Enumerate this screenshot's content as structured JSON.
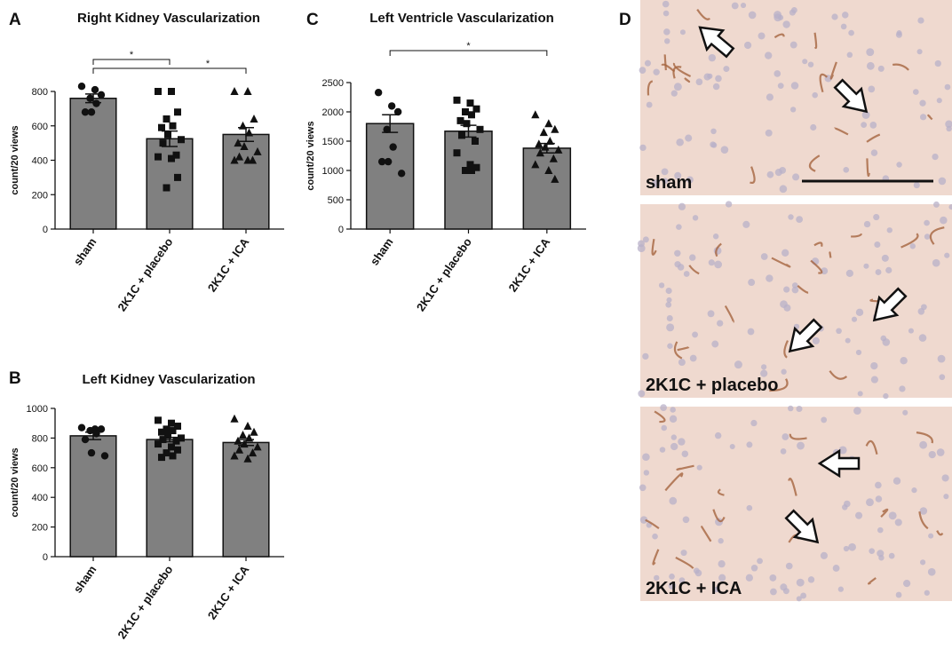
{
  "chart_data": [
    {
      "type": "bar",
      "panel": "A",
      "title": "Right Kidney Vascularization",
      "ylabel": "count/20 views",
      "categories": [
        "sham",
        "2K1C + placebo",
        "2K1C + ICA"
      ],
      "values": [
        760,
        525,
        550
      ],
      "errors": [
        25,
        45,
        40
      ],
      "points": [
        [
          830,
          810,
          780,
          760,
          730,
          680,
          680
        ],
        [
          800,
          800,
          680,
          640,
          600,
          590,
          550,
          520,
          500,
          430,
          420,
          410,
          300,
          240
        ],
        [
          800,
          800,
          640,
          600,
          560,
          500,
          480,
          450,
          420,
          400,
          400,
          400
        ]
      ],
      "markers": [
        "circle",
        "square",
        "triangle"
      ],
      "color": "#808080",
      "ylim": [
        0,
        800
      ],
      "yticks": [
        0,
        200,
        400,
        600,
        800
      ],
      "significance": [
        {
          "between": [
            "sham",
            "2K1C + placebo"
          ],
          "label": "*"
        },
        {
          "between": [
            "sham",
            "2K1C + ICA"
          ],
          "label": "*"
        }
      ]
    },
    {
      "type": "bar",
      "panel": "B",
      "title": "Left Kidney Vascularization",
      "ylabel": "count/20 views",
      "categories": [
        "sham",
        "2K1C + placebo",
        "2K1C + ICA"
      ],
      "values": [
        815,
        790,
        770
      ],
      "errors": [
        25,
        15,
        20
      ],
      "points": [
        [
          870,
          860,
          860,
          850,
          830,
          790,
          700,
          680
        ],
        [
          920,
          900,
          880,
          860,
          850,
          840,
          820,
          800,
          790,
          780,
          760,
          740,
          720,
          700,
          680,
          670
        ],
        [
          930,
          880,
          840,
          820,
          800,
          780,
          760,
          740,
          720,
          700,
          680,
          660
        ]
      ],
      "markers": [
        "circle",
        "square",
        "triangle"
      ],
      "color": "#808080",
      "ylim": [
        0,
        1000
      ],
      "yticks": [
        0,
        200,
        400,
        600,
        800,
        1000
      ],
      "significance": []
    },
    {
      "type": "bar",
      "panel": "C",
      "title": "Left Ventricle Vascularization",
      "ylabel": "count/20 views",
      "categories": [
        "sham",
        "2K1C + placebo",
        "2K1C + ICA"
      ],
      "values": [
        1800,
        1670,
        1380
      ],
      "errors": [
        150,
        100,
        80
      ],
      "points": [
        [
          2330,
          2100,
          2000,
          1700,
          1400,
          1150,
          1150,
          950
        ],
        [
          2200,
          2150,
          2050,
          2000,
          1950,
          1850,
          1800,
          1700,
          1600,
          1500,
          1300,
          1100,
          1050,
          1000,
          1000
        ],
        [
          1950,
          1800,
          1700,
          1650,
          1500,
          1450,
          1400,
          1350,
          1300,
          1200,
          1100,
          1000,
          850
        ]
      ],
      "markers": [
        "circle",
        "square",
        "triangle"
      ],
      "color": "#808080",
      "ylim": [
        0,
        2500
      ],
      "yticks": [
        0,
        500,
        1000,
        1500,
        2000,
        2500
      ],
      "significance": [
        {
          "between": [
            "sham",
            "2K1C + ICA"
          ],
          "label": "*"
        }
      ]
    }
  ],
  "images": {
    "panel": "D",
    "labels": [
      "sham",
      "2K1C + placebo",
      "2K1C + ICA"
    ]
  }
}
